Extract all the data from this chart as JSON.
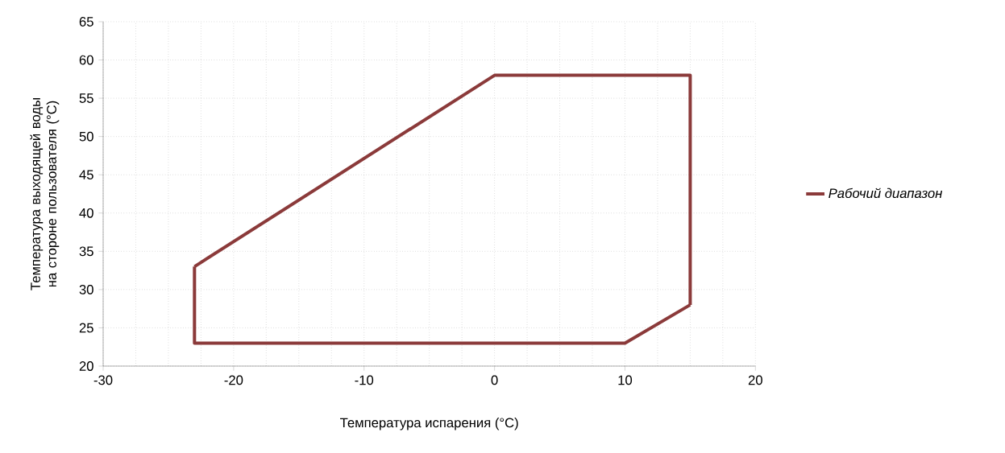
{
  "chart_data": {
    "type": "line",
    "xlabel": "Температура испарения (°C)",
    "ylabel": "Температура выходящей воды на стороне пользователя (°C)",
    "series": [
      {
        "name": "Рабочий диапазон",
        "color": "#8b3a3a",
        "x": [
          -23,
          0,
          15,
          15
        ],
        "values": [
          33,
          58,
          58,
          28
        ]
      },
      {
        "color": "#8b3a3a",
        "x": [
          -23,
          -23,
          10,
          15
        ],
        "values": [
          33,
          23,
          23,
          28
        ]
      }
    ],
    "xlim": [
      -30,
      20
    ],
    "xticks": [
      -30,
      -20,
      -10,
      0,
      10,
      20
    ],
    "ylim": [
      20,
      65
    ],
    "yticks": [
      20,
      25,
      30,
      35,
      40,
      45,
      50,
      55,
      60,
      65
    ],
    "grid": true,
    "legend": "right",
    "marker": "none",
    "line_style": "solid"
  }
}
